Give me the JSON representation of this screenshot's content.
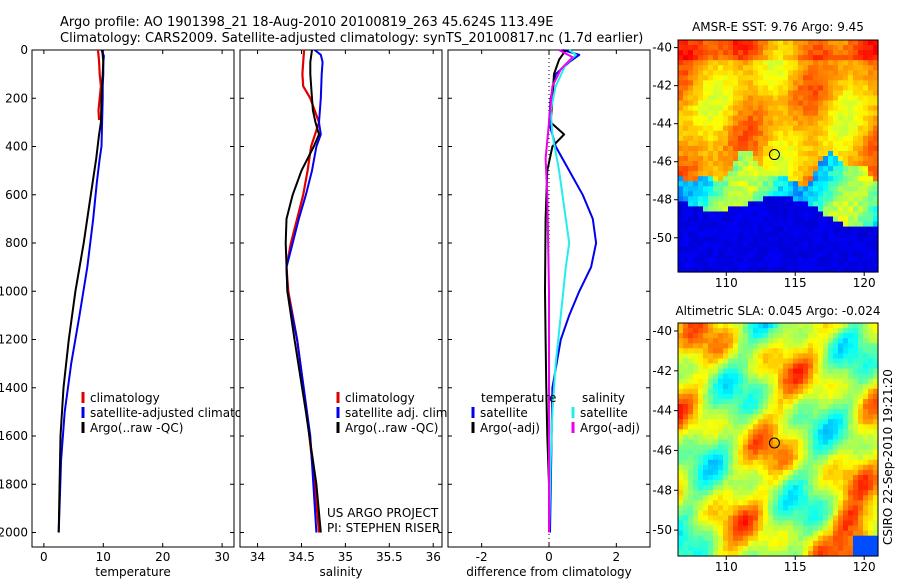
{
  "header": {
    "line1": "Argo profile: AO 1901398_21 18-Aug-2010 20100819_263 45.624S 113.49E",
    "line2": "Climatology: CARS2009. Satellite-adjusted climatology: synTS_20100817.nc (1.7d earlier)"
  },
  "side_label": "CSIRO 22-Sep-2010 19:21:20",
  "colors": {
    "red": "#e00000",
    "blue": "#0000ee",
    "black": "#000000",
    "cyan": "#22eeee",
    "magenta": "#ee00ee"
  },
  "depth_axis": {
    "ylim": [
      0,
      2060
    ],
    "ticks": [
      0,
      200,
      400,
      600,
      800,
      1000,
      1200,
      1400,
      1600,
      1800,
      2000
    ],
    "tick_labels": [
      "0",
      "200",
      "400",
      "600",
      "800",
      "1000",
      "1200",
      "1400",
      "1600",
      "1800",
      "2000"
    ]
  },
  "chart_data": [
    {
      "id": "temperature",
      "type": "line",
      "xlabel": "temperature",
      "xlim": [
        -2,
        32
      ],
      "xticks": [
        0,
        10,
        20,
        30
      ],
      "xtick_labels": [
        "0",
        "10",
        "20",
        "30"
      ],
      "legend": {
        "entries": [
          {
            "label": "climatology",
            "color": "red"
          },
          {
            "label": "satellite-adjusted climatology",
            "color": "blue"
          },
          {
            "label": "Argo(..raw -QC)",
            "color": "black"
          }
        ]
      },
      "series": [
        {
          "name": "climatology",
          "color": "red",
          "x": [
            9.1,
            9.2,
            9.3,
            9.4,
            9.6,
            9.4,
            9.2,
            9.3
          ],
          "y": [
            0,
            20,
            50,
            100,
            150,
            200,
            250,
            290
          ]
        },
        {
          "name": "satellite-adjusted climatology",
          "color": "blue",
          "x": [
            9.7,
            10.1,
            10.0,
            10.0,
            9.9,
            9.9,
            9.8,
            9.7,
            9.4,
            8.9,
            8.3,
            7.3,
            6.0,
            4.6,
            3.5,
            2.9,
            2.5
          ],
          "y": [
            0,
            25,
            50,
            100,
            150,
            200,
            300,
            400,
            450,
            550,
            700,
            900,
            1100,
            1300,
            1500,
            1700,
            2000
          ]
        },
        {
          "name": "Argo(..raw -QC)",
          "color": "black",
          "x": [
            9.8,
            9.9,
            10.0,
            9.9,
            9.8,
            9.7,
            9.6,
            9.3,
            8.8,
            7.9,
            6.7,
            5.3,
            4.2,
            3.3,
            2.8,
            2.5
          ],
          "y": [
            0,
            20,
            50,
            100,
            150,
            200,
            300,
            350,
            450,
            600,
            800,
            1000,
            1200,
            1400,
            1600,
            2000
          ]
        }
      ]
    },
    {
      "id": "salinity",
      "type": "line",
      "xlabel": "salinity",
      "xlim": [
        33.8,
        36.1
      ],
      "xticks": [
        34,
        34.5,
        35,
        35.5,
        36
      ],
      "xtick_labels": [
        "34",
        "34.5",
        "35",
        "35.5",
        "36"
      ],
      "legend": {
        "entries": [
          {
            "label": "climatology",
            "color": "red"
          },
          {
            "label": "satellite adj. clim.",
            "color": "blue"
          },
          {
            "label": "Argo(..raw -QC)",
            "color": "black"
          }
        ]
      },
      "annotation": [
        "US ARGO PROJECT",
        "PI: STEPHEN RISER"
      ],
      "series": [
        {
          "name": "climatology",
          "color": "red",
          "x": [
            34.53,
            34.52,
            34.51,
            34.52,
            34.6,
            34.7,
            34.61,
            34.57,
            34.52,
            34.45,
            34.38,
            34.33,
            34.35,
            34.45,
            34.56,
            34.65,
            34.7
          ],
          "y": [
            0,
            50,
            100,
            150,
            200,
            300,
            400,
            500,
            600,
            700,
            800,
            900,
            1000,
            1200,
            1500,
            1800,
            2000
          ]
        },
        {
          "name": "satellite adj. clim.",
          "color": "blue",
          "x": [
            34.65,
            34.72,
            34.74,
            34.73,
            34.72,
            34.7,
            34.72,
            34.67,
            34.62,
            34.55,
            34.47,
            34.4,
            34.33,
            34.34,
            34.45,
            34.6,
            34.67
          ],
          "y": [
            0,
            20,
            50,
            100,
            200,
            300,
            350,
            400,
            500,
            600,
            700,
            800,
            900,
            1000,
            1200,
            1600,
            2000
          ]
        },
        {
          "name": "Argo(..raw -QC)",
          "color": "black",
          "x": [
            34.62,
            34.6,
            34.6,
            34.62,
            34.63,
            34.66,
            34.7,
            34.64,
            34.5,
            34.4,
            34.33,
            34.32,
            34.34,
            34.42,
            34.55,
            34.67,
            34.72
          ],
          "y": [
            0,
            50,
            100,
            200,
            250,
            300,
            350,
            400,
            500,
            600,
            700,
            800,
            1000,
            1200,
            1500,
            1800,
            2000
          ]
        }
      ]
    },
    {
      "id": "difference",
      "type": "line",
      "xlabel": "difference from climatology",
      "xlim": [
        -3,
        3
      ],
      "xticks": [
        -2,
        0,
        2
      ],
      "xtick_labels": [
        "-2",
        "0",
        "2"
      ],
      "legend": {
        "col1_title": "temperature",
        "col2_title": "salinity",
        "entries": [
          {
            "label": "satellite",
            "color": "blue"
          },
          {
            "label": "Argo(-adj)",
            "color": "black"
          },
          {
            "label": "satellite",
            "color": "cyan"
          },
          {
            "label": "Argo(-adj)",
            "color": "magenta"
          }
        ]
      },
      "series": [
        {
          "name": "temperature satellite",
          "color": "blue",
          "x": [
            0.4,
            0.9,
            0.6,
            0.2,
            0.05,
            0,
            0.2,
            0.6,
            1.0,
            1.3,
            1.4,
            1.25,
            0.9,
            0.6,
            0.35,
            0.1,
            0.03
          ],
          "y": [
            0,
            20,
            50,
            100,
            200,
            300,
            400,
            500,
            600,
            700,
            800,
            900,
            1000,
            1100,
            1200,
            1400,
            2000
          ]
        },
        {
          "name": "temperature Argo(-adj)",
          "color": "black",
          "x": [
            0.5,
            0.3,
            0.15,
            0.1,
            0.05,
            0.45,
            0.1,
            -0.05,
            -0.1,
            -0.12,
            -0.1,
            -0.08,
            -0.05,
            0,
            0
          ],
          "y": [
            0,
            40,
            100,
            200,
            300,
            350,
            400,
            500,
            700,
            1000,
            1200,
            1400,
            1600,
            1800,
            2000
          ]
        },
        {
          "name": "salinity satellite",
          "color": "cyan",
          "x": [
            0.6,
            0.8,
            0.5,
            0.2,
            0.05,
            0.1,
            0.3,
            0.5,
            0.6,
            0.5,
            0.35,
            0.2,
            0.1,
            0.05,
            0.0
          ],
          "y": [
            0,
            20,
            60,
            150,
            250,
            350,
            500,
            700,
            800,
            900,
            1100,
            1300,
            1500,
            1700,
            2000
          ]
        },
        {
          "name": "salinity Argo(-adj)",
          "color": "magenta",
          "x": [
            0.3,
            0.7,
            0.35,
            0.1,
            0.0,
            -0.1,
            -0.05,
            0,
            0,
            0
          ],
          "y": [
            0,
            30,
            80,
            150,
            300,
            450,
            600,
            1000,
            1500,
            2000
          ]
        }
      ]
    }
  ],
  "maps": [
    {
      "id": "sst",
      "title": "AMSR-E SST: 9.76 Argo: 9.45",
      "xlim": [
        106.5,
        121
      ],
      "ylim": [
        -51.8,
        -39.6
      ],
      "xticks": [
        110,
        115,
        120
      ],
      "yticks": [
        -40,
        -42,
        -44,
        -46,
        -48,
        -50
      ],
      "xtick_labels": [
        "110",
        "115",
        "120"
      ],
      "ytick_labels": [
        "-40",
        "-42",
        "-44",
        "-46",
        "-48",
        "-50"
      ],
      "marker": {
        "lon": 113.49,
        "lat": -45.624
      }
    },
    {
      "id": "sla",
      "title": "Altimetric SLA: 0.045 Argo: -0.024",
      "xlim": [
        106.5,
        121
      ],
      "ylim": [
        -51.3,
        -39.6
      ],
      "xticks": [
        110,
        115,
        120
      ],
      "yticks": [
        -40,
        -42,
        -44,
        -46,
        -48,
        -50
      ],
      "xtick_labels": [
        "110",
        "115",
        "120"
      ],
      "ytick_labels": [
        "-40",
        "-42",
        "-44",
        "-46",
        "-48",
        "-50"
      ],
      "marker": {
        "lon": 113.49,
        "lat": -45.624
      }
    }
  ]
}
